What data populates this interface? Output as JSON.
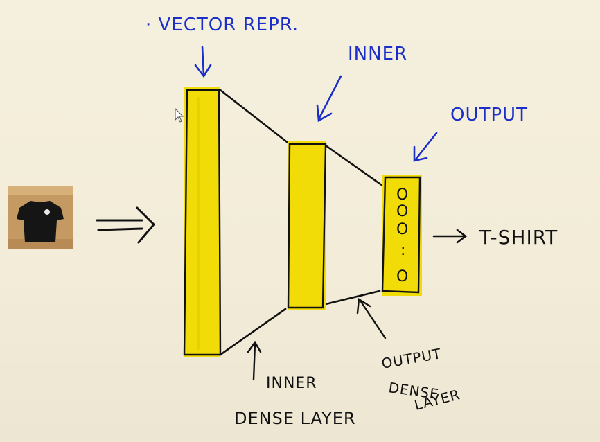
{
  "labels": {
    "vector_repr": "· VECTOR REPR.",
    "inner": "INNER",
    "output": "OUTPUT",
    "tshirt": "T-SHIRT",
    "inner_dense_layer": [
      "INNER",
      "DENSE LAYER"
    ],
    "output_dense_layer": [
      "OUTPUT",
      "DENSE",
      "LAYER"
    ]
  },
  "output_layer_symbols": [
    "O",
    "O",
    "O",
    ":",
    "O"
  ],
  "colors": {
    "layer_fill": "#f2dc08",
    "blue_ink": "#1b2fc8",
    "black_ink": "#111111",
    "background": "#f5f0de"
  },
  "icons": {
    "input_image": "tshirt-photo",
    "cursor": "mouse-pointer-icon"
  }
}
